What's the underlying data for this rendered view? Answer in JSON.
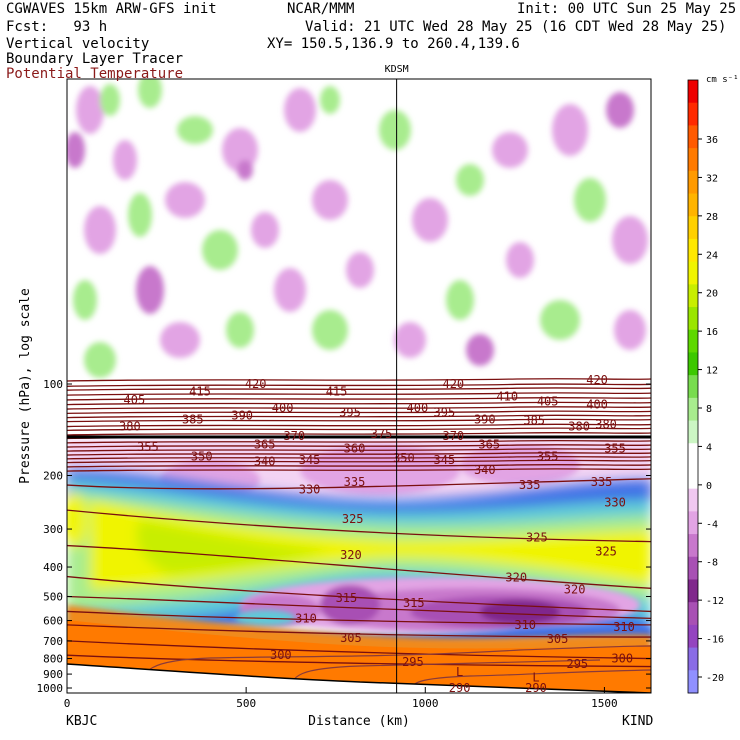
{
  "header": {
    "model": "CGWAVES 15km ARW-GFS init",
    "org": "NCAR/MMM",
    "init": "Init: 00 UTC Sun 25 May 25",
    "fcst": "Fcst:   93 h",
    "valid": "Valid: 21 UTC Wed 28 May 25 (16 CDT Wed 28 May 25)",
    "field1": "Vertical velocity",
    "field2": "Boundary Layer Tracer",
    "field3": "Potential Temperature",
    "xy": "XY= 150.5,136.9 to 260.4,139.6"
  },
  "colors": {
    "theta_contour": "#7a0f0f",
    "tracer": "#8a3a3a",
    "terrain_fill": "#f08a1c"
  },
  "chart_data": {
    "type": "heatmap",
    "xlabel": "Distance (km)",
    "ylabel": "Pressure (hPa), log scale",
    "x_ticks": [
      "0",
      "500",
      "1000",
      "1500"
    ],
    "x_tick_values": [
      0,
      500,
      1000,
      1500
    ],
    "xlim": [
      0,
      1630
    ],
    "y_ticks": [
      "100",
      "200",
      "300",
      "400",
      "500",
      "600",
      "700",
      "800",
      "900",
      "1000"
    ],
    "y_tick_values": [
      100,
      200,
      300,
      400,
      500,
      600,
      700,
      800,
      900,
      1000
    ],
    "y_scale": "log",
    "left_label": "KBJC",
    "right_label": "KIND",
    "marker_label": "KDSM",
    "marker_x": 920,
    "colorbar": {
      "unit": "cm s⁻¹",
      "tick_labels": [
        "36",
        "32",
        "28",
        "24",
        "20",
        "16",
        "12",
        "8",
        "4",
        "0",
        "-4",
        "-8",
        "-12",
        "-16",
        "-20"
      ],
      "tick_values": [
        36,
        32,
        28,
        24,
        20,
        16,
        12,
        8,
        4,
        0,
        -4,
        -8,
        -12,
        -16,
        -20
      ],
      "colors": [
        "#ee0000",
        "#ff2a00",
        "#ff5a00",
        "#ff7a00",
        "#ff9a00",
        "#ffb400",
        "#ffd000",
        "#ffe800",
        "#f0f400",
        "#c8ee00",
        "#9ae600",
        "#5ed800",
        "#3cc800",
        "#78dc4e",
        "#a8ec8e",
        "#ccf6c4",
        "#ffffff",
        "#ffffff",
        "#f0c8f0",
        "#e2a4e4",
        "#c878cc",
        "#a850b4",
        "#80288c",
        "#a850b4",
        "#9444c0",
        "#8a6ce6",
        "#9090ff"
      ]
    },
    "theta_labels": [
      {
        "v": "420",
        "x": 210,
        "p": 100
      },
      {
        "v": "415",
        "x": 148,
        "p": 106
      },
      {
        "v": "415",
        "x": 300,
        "p": 106
      },
      {
        "v": "420",
        "x": 430,
        "p": 100
      },
      {
        "v": "420",
        "x": 590,
        "p": 97
      },
      {
        "v": "405",
        "x": 75,
        "p": 113
      },
      {
        "v": "400",
        "x": 240,
        "p": 120
      },
      {
        "v": "395",
        "x": 315,
        "p": 124
      },
      {
        "v": "400",
        "x": 390,
        "p": 120
      },
      {
        "v": "395",
        "x": 420,
        "p": 124
      },
      {
        "v": "410",
        "x": 490,
        "p": 110
      },
      {
        "v": "405",
        "x": 535,
        "p": 114
      },
      {
        "v": "400",
        "x": 590,
        "p": 117
      },
      {
        "v": "385",
        "x": 140,
        "p": 131
      },
      {
        "v": "390",
        "x": 195,
        "p": 127
      },
      {
        "v": "380",
        "x": 70,
        "p": 138
      },
      {
        "v": "390",
        "x": 465,
        "p": 131
      },
      {
        "v": "385",
        "x": 520,
        "p": 132
      },
      {
        "v": "380",
        "x": 570,
        "p": 138
      },
      {
        "v": "380",
        "x": 600,
        "p": 136
      },
      {
        "v": "370",
        "x": 253,
        "p": 148
      },
      {
        "v": "375",
        "x": 350,
        "p": 146
      },
      {
        "v": "370",
        "x": 430,
        "p": 148
      },
      {
        "v": "365",
        "x": 220,
        "p": 158
      },
      {
        "v": "365",
        "x": 470,
        "p": 158
      },
      {
        "v": "355",
        "x": 90,
        "p": 161
      },
      {
        "v": "350",
        "x": 150,
        "p": 173
      },
      {
        "v": "360",
        "x": 320,
        "p": 163
      },
      {
        "v": "355",
        "x": 535,
        "p": 173
      },
      {
        "v": "355",
        "x": 610,
        "p": 163
      },
      {
        "v": "340",
        "x": 220,
        "p": 180
      },
      {
        "v": "345",
        "x": 270,
        "p": 178
      },
      {
        "v": "350",
        "x": 375,
        "p": 175
      },
      {
        "v": "345",
        "x": 420,
        "p": 178
      },
      {
        "v": "340",
        "x": 465,
        "p": 192
      },
      {
        "v": "335",
        "x": 320,
        "p": 210
      },
      {
        "v": "330",
        "x": 270,
        "p": 222
      },
      {
        "v": "335",
        "x": 515,
        "p": 215
      },
      {
        "v": "335",
        "x": 595,
        "p": 210
      },
      {
        "v": "330",
        "x": 610,
        "p": 245
      },
      {
        "v": "325",
        "x": 318,
        "p": 278
      },
      {
        "v": "325",
        "x": 523,
        "p": 320
      },
      {
        "v": "325",
        "x": 600,
        "p": 355
      },
      {
        "v": "320",
        "x": 316,
        "p": 365
      },
      {
        "v": "320",
        "x": 500,
        "p": 433
      },
      {
        "v": "320",
        "x": 565,
        "p": 475
      },
      {
        "v": "315",
        "x": 311,
        "p": 505
      },
      {
        "v": "315",
        "x": 386,
        "p": 525
      },
      {
        "v": "310",
        "x": 266,
        "p": 590
      },
      {
        "v": "310",
        "x": 510,
        "p": 620
      },
      {
        "v": "310",
        "x": 620,
        "p": 630
      },
      {
        "v": "305",
        "x": 316,
        "p": 685
      },
      {
        "v": "305",
        "x": 546,
        "p": 690
      },
      {
        "v": "300",
        "x": 238,
        "p": 780
      },
      {
        "v": "300",
        "x": 618,
        "p": 800
      },
      {
        "v": "295",
        "x": 385,
        "p": 820
      },
      {
        "v": "295",
        "x": 568,
        "p": 835
      },
      {
        "v": "L",
        "x": 437,
        "p": 885
      },
      {
        "v": "L",
        "x": 522,
        "p": 925
      },
      {
        "v": "290",
        "x": 437,
        "p": 1000
      },
      {
        "v": "290",
        "x": 522,
        "p": 1000
      }
    ]
  }
}
